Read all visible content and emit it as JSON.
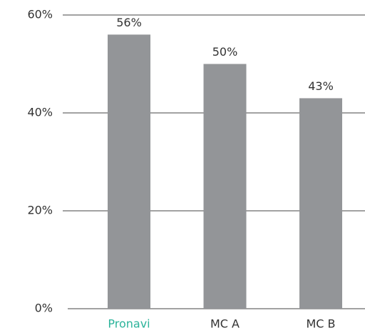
{
  "chart_data": {
    "type": "bar",
    "categories": [
      "Pronavi",
      "MC A",
      "MC B"
    ],
    "category_label_colors": [
      "#2bb39a",
      "#333333",
      "#333333"
    ],
    "values": [
      56,
      50,
      43
    ],
    "value_labels": [
      "56%",
      "50%",
      "43%"
    ],
    "color": "#939598",
    "ylim": [
      0,
      60
    ],
    "yticks": [
      {
        "value": 0,
        "label": "0%"
      },
      {
        "value": 20,
        "label": "20%"
      },
      {
        "value": 40,
        "label": "40%"
      },
      {
        "value": 60,
        "label": "60%"
      }
    ],
    "grid": true
  }
}
